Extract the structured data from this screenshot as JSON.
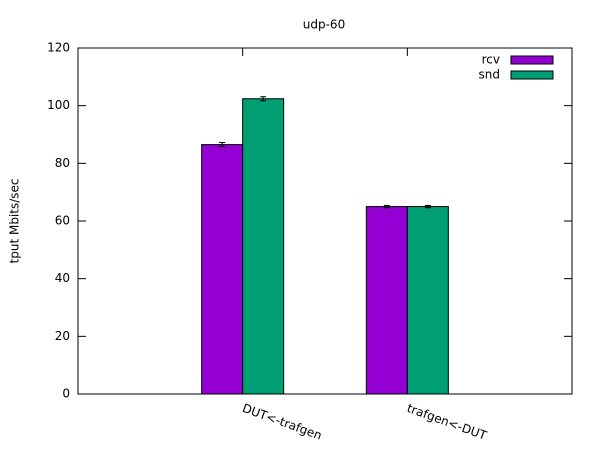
{
  "chart_data": {
    "type": "bar",
    "title": "udp-60",
    "y_label": "tput Mbits/sec",
    "categories": [
      "DUT<-trafgen",
      "trafgen<-DUT"
    ],
    "series": [
      {
        "name": "rcv",
        "color": "#9400d3",
        "values": [
          86.5,
          65.0
        ],
        "errors": [
          0.7,
          0.4
        ]
      },
      {
        "name": "snd",
        "color": "#009e73",
        "values": [
          102.4,
          65.0
        ],
        "errors": [
          0.7,
          0.4
        ]
      }
    ],
    "ylim": [
      0,
      120
    ],
    "yticks": [
      0,
      20,
      40,
      60,
      80,
      100,
      120
    ],
    "grid": false,
    "legend": "top-right"
  }
}
